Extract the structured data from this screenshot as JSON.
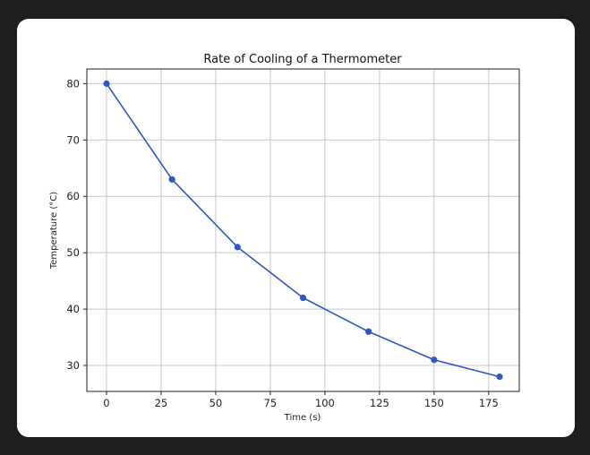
{
  "colors": {
    "background": "#1d1e20",
    "card": "#ffffff",
    "series": "#2f55c8",
    "grid": "#c8c8c8"
  },
  "chart_data": {
    "type": "line",
    "title": "Rate of Cooling of a Thermometer",
    "xlabel": "Time (s)",
    "ylabel": "Temperature (°C)",
    "x": [
      0,
      30,
      60,
      90,
      120,
      150,
      180
    ],
    "series": [
      {
        "name": "",
        "values": [
          80,
          63,
          51,
          42,
          36,
          31,
          28
        ],
        "marker": "circle",
        "color": "#2f55c8"
      }
    ],
    "xticks": [
      0,
      25,
      50,
      75,
      100,
      125,
      150,
      175
    ],
    "yticks": [
      30,
      40,
      50,
      60,
      70,
      80
    ],
    "xtick_labels": [
      "0",
      "25",
      "50",
      "75",
      "100",
      "125",
      "150",
      "175"
    ],
    "ytick_labels": [
      "30",
      "40",
      "50",
      "60",
      "70",
      "80"
    ],
    "xlim": [
      -9,
      189
    ],
    "ylim": [
      25.4,
      82.6
    ],
    "grid": true,
    "legend": "none"
  }
}
